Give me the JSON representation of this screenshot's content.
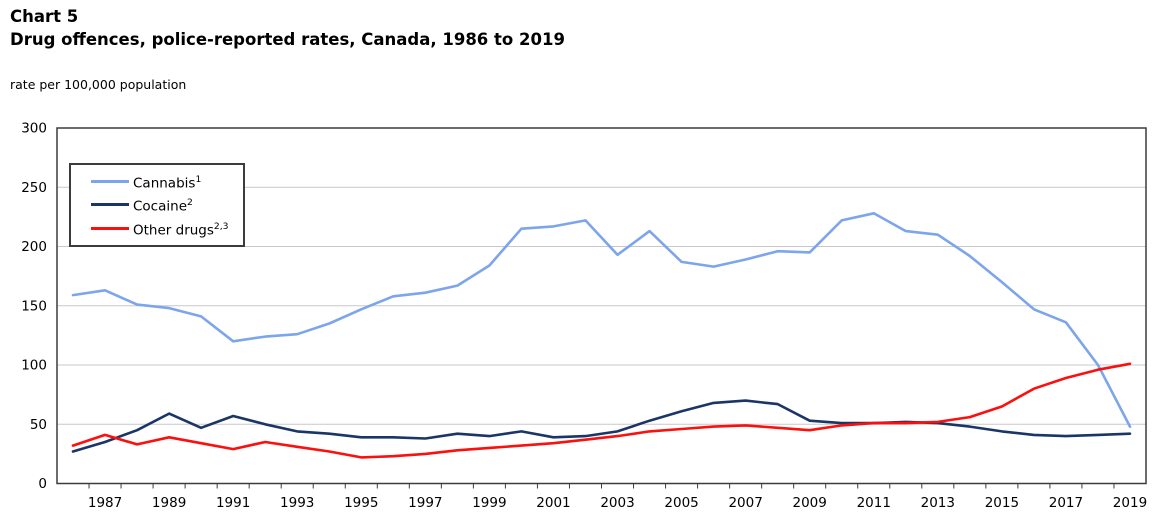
{
  "header": {
    "chart_label": "Chart 5",
    "title": "Drug offences, police-reported rates, Canada, 1986 to 2019",
    "axis_note": "rate per 100,000 population"
  },
  "legend": {
    "items": [
      {
        "label": "Cannabis",
        "sup": "1"
      },
      {
        "label": "Cocaine",
        "sup": "2"
      },
      {
        "label": "Other drugs",
        "sup": "2,3"
      }
    ]
  },
  "chart_data": {
    "type": "line",
    "title": "Drug offences, police-reported rates, Canada, 1986 to 2019",
    "ylabel": "rate per 100,000 population",
    "ylim": [
      0,
      300
    ],
    "ytick_interval": 50,
    "grid": true,
    "legend_position": "inside-top-left",
    "x": [
      1986,
      1987,
      1988,
      1989,
      1990,
      1991,
      1992,
      1993,
      1994,
      1995,
      1996,
      1997,
      1998,
      1999,
      2000,
      2001,
      2002,
      2003,
      2004,
      2005,
      2006,
      2007,
      2008,
      2009,
      2010,
      2011,
      2012,
      2013,
      2014,
      2015,
      2016,
      2017,
      2018,
      2019
    ],
    "xtick_labels": [
      "1987",
      "1989",
      "1991",
      "1993",
      "1995",
      "1997",
      "1999",
      "2001",
      "2003",
      "2005",
      "2007",
      "2009",
      "2011",
      "2013",
      "2015",
      "2017",
      "2019"
    ],
    "series": [
      {
        "key": "cannabis",
        "name": "Cannabis¹",
        "color": "#7DA5EC",
        "values": [
          159,
          163,
          151,
          148,
          141,
          120,
          124,
          126,
          135,
          147,
          158,
          161,
          167,
          184,
          215,
          217,
          222,
          193,
          213,
          187,
          183,
          189,
          196,
          195,
          222,
          228,
          213,
          210,
          192,
          170,
          147,
          136,
          100,
          48
        ]
      },
      {
        "key": "cocaine",
        "name": "Cocaine²",
        "color": "#1B3666",
        "values": [
          27,
          35,
          45,
          59,
          47,
          57,
          50,
          44,
          42,
          39,
          39,
          38,
          42,
          40,
          44,
          39,
          40,
          44,
          53,
          61,
          68,
          70,
          67,
          53,
          51,
          51,
          52,
          51,
          48,
          44,
          41,
          40,
          41,
          42
        ]
      },
      {
        "key": "other-drugs",
        "name": "Other drugs²,³",
        "color": "#FB100D",
        "values": [
          32,
          41,
          33,
          39,
          34,
          29,
          35,
          31,
          27,
          22,
          23,
          25,
          28,
          30,
          32,
          34,
          37,
          40,
          44,
          46,
          48,
          49,
          47,
          45,
          49,
          51,
          51,
          52,
          56,
          65,
          80,
          89,
          96,
          101
        ]
      }
    ],
    "axis_colors": {
      "frame": "#3c3c3c",
      "gridline": "#c8c8c8"
    }
  }
}
